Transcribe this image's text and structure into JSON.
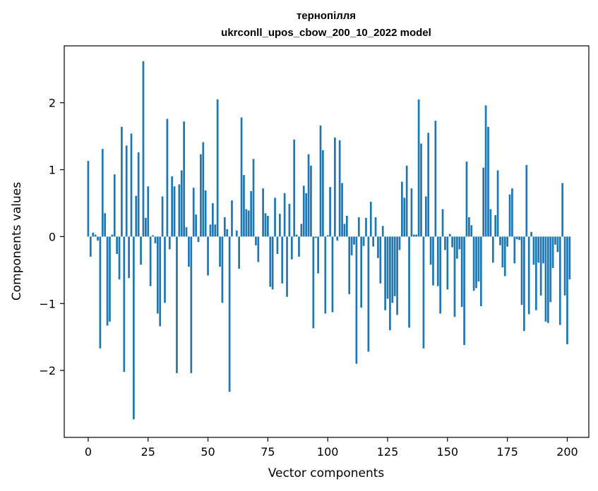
{
  "chart_data": {
    "type": "bar",
    "title_line1": "тернопілля",
    "title_line2": "ukrconll_upos_cbow_200_10_2022 model",
    "xlabel": "Vector components",
    "ylabel": "Components values",
    "xlim": [
      -10,
      209
    ],
    "ylim": [
      -3.0,
      2.85
    ],
    "xticks": [
      0,
      25,
      50,
      75,
      100,
      125,
      150,
      175,
      200
    ],
    "xtick_labels": [
      "0",
      "25",
      "50",
      "75",
      "100",
      "125",
      "150",
      "175",
      "200"
    ],
    "yticks": [
      -2,
      -1,
      0,
      1,
      2
    ],
    "ytick_labels": [
      "−2",
      "−1",
      "0",
      "1",
      "2"
    ],
    "bar_color": "#1f77b4",
    "values": [
      1.13,
      -0.3,
      0.06,
      0.03,
      -0.06,
      -1.67,
      1.31,
      0.35,
      -1.33,
      -1.27,
      0.03,
      0.93,
      -0.26,
      -0.64,
      1.64,
      -2.02,
      1.36,
      -0.62,
      1.54,
      -2.73,
      0.61,
      1.26,
      -0.42,
      2.62,
      0.28,
      0.75,
      -0.74,
      0.02,
      -0.1,
      -1.15,
      -1.34,
      0.6,
      -0.99,
      1.76,
      -0.19,
      0.9,
      0.75,
      -2.04,
      0.78,
      0.99,
      1.72,
      0.14,
      -0.45,
      -2.04,
      0.73,
      0.33,
      -0.08,
      1.23,
      1.41,
      0.69,
      -0.58,
      0.18,
      0.5,
      0.18,
      2.05,
      -0.45,
      -0.99,
      0.29,
      0.11,
      -2.32,
      0.54,
      0.0,
      0.09,
      -0.48,
      1.78,
      0.92,
      0.41,
      0.39,
      0.68,
      1.16,
      -0.13,
      -0.38,
      0.0,
      0.72,
      0.35,
      0.31,
      -0.75,
      -0.79,
      0.58,
      -0.26,
      0.34,
      -0.7,
      0.65,
      -0.9,
      0.49,
      -0.34,
      1.45,
      0.03,
      -0.3,
      0.19,
      0.76,
      0.65,
      1.23,
      1.06,
      -1.37,
      -0.02,
      -0.55,
      1.66,
      1.29,
      -1.15,
      0.02,
      0.74,
      -1.13,
      1.48,
      -0.06,
      1.44,
      0.8,
      0.19,
      0.31,
      -0.86,
      -0.28,
      -0.12,
      -1.9,
      0.29,
      -1.06,
      -0.14,
      0.28,
      -1.72,
      0.52,
      -0.15,
      0.29,
      -0.32,
      -0.7,
      0.16,
      -1.1,
      -0.93,
      -1.4,
      -0.99,
      -0.89,
      -1.17,
      -0.2,
      0.82,
      0.58,
      1.06,
      -1.36,
      0.72,
      0.03,
      0.03,
      2.05,
      1.39,
      -1.67,
      0.6,
      1.55,
      -0.42,
      -0.73,
      1.73,
      -0.74,
      -1.15,
      0.41,
      -0.2,
      -0.79,
      0.04,
      -0.16,
      -1.2,
      -0.33,
      -0.19,
      -1.05,
      -1.62,
      1.12,
      0.29,
      0.17,
      -0.81,
      -0.77,
      -0.67,
      -1.04,
      1.03,
      1.96,
      1.64,
      0.41,
      -0.39,
      0.32,
      0.99,
      -0.13,
      -0.46,
      -0.59,
      -0.15,
      0.63,
      0.72,
      -0.4,
      -0.04,
      -0.05,
      -1.02,
      -1.41,
      1.07,
      -1.16,
      0.07,
      -0.42,
      -1.1,
      -0.39,
      -0.88,
      -0.4,
      -1.27,
      -1.29,
      -0.98,
      -0.47,
      -0.12,
      -0.23,
      -1.32,
      0.8,
      -0.88,
      -1.61,
      -0.64
    ]
  }
}
